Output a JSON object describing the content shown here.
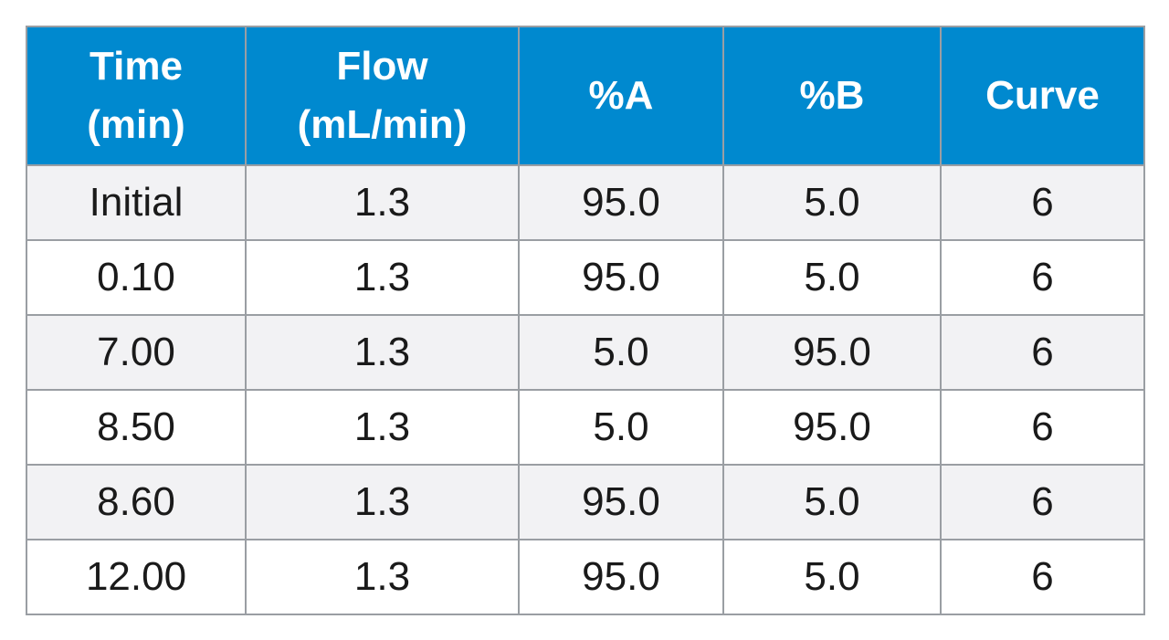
{
  "table": {
    "headers": [
      [
        "Time",
        "(min)"
      ],
      [
        "Flow",
        "(mL/min)"
      ],
      [
        "%A"
      ],
      [
        "%B"
      ],
      [
        "Curve"
      ]
    ],
    "rows": [
      [
        "Initial",
        "1.3",
        "95.0",
        "5.0",
        "6"
      ],
      [
        "0.10",
        "1.3",
        "95.0",
        "5.0",
        "6"
      ],
      [
        "7.00",
        "1.3",
        "5.0",
        "95.0",
        "6"
      ],
      [
        "8.50",
        "1.3",
        "5.0",
        "95.0",
        "6"
      ],
      [
        "8.60",
        "1.3",
        "95.0",
        "5.0",
        "6"
      ],
      [
        "12.00",
        "1.3",
        "95.0",
        "5.0",
        "6"
      ]
    ]
  },
  "colors": {
    "header_bg": "#0089cf",
    "header_text": "#ffffff",
    "row_bg_shaded": "#f2f2f4",
    "row_bg_plain": "#ffffff",
    "border": "#9a9ea3"
  }
}
